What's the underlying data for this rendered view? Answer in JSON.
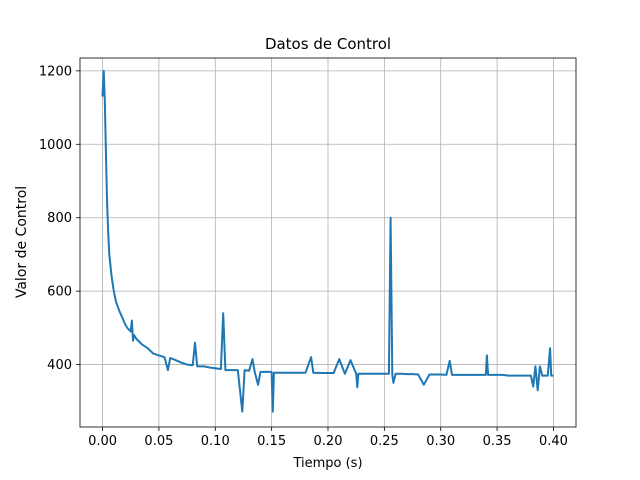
{
  "chart_data": {
    "type": "line",
    "title": "Datos de Control",
    "xlabel": "Tiempo (s)",
    "ylabel": "Valor de Control",
    "xlim": [
      -0.02,
      0.42
    ],
    "ylim": [
      230,
      1235
    ],
    "xticks": [
      0.0,
      0.05,
      0.1,
      0.15,
      0.2,
      0.25,
      0.3,
      0.35,
      0.4
    ],
    "xtick_labels": [
      "0.00",
      "0.05",
      "0.10",
      "0.15",
      "0.20",
      "0.25",
      "0.30",
      "0.35",
      "0.40"
    ],
    "yticks": [
      400,
      600,
      800,
      1000,
      1200
    ],
    "ytick_labels": [
      "400",
      "600",
      "800",
      "1000",
      "1200"
    ],
    "grid": true,
    "color": "#1f77b4",
    "series": [
      {
        "x": [
          0.0,
          0.001,
          0.002,
          0.003,
          0.004,
          0.005,
          0.006,
          0.008,
          0.01,
          0.012,
          0.015,
          0.018,
          0.02,
          0.022,
          0.025,
          0.026,
          0.027,
          0.028,
          0.03,
          0.035,
          0.04,
          0.045,
          0.05,
          0.055,
          0.058,
          0.06,
          0.065,
          0.07,
          0.075,
          0.08,
          0.082,
          0.084,
          0.09,
          0.095,
          0.1,
          0.105,
          0.107,
          0.109,
          0.115,
          0.12,
          0.124,
          0.126,
          0.13,
          0.133,
          0.135,
          0.138,
          0.14,
          0.145,
          0.15,
          0.151,
          0.152,
          0.16,
          0.17,
          0.18,
          0.185,
          0.187,
          0.195,
          0.2,
          0.205,
          0.21,
          0.215,
          0.22,
          0.225,
          0.226,
          0.227,
          0.235,
          0.24,
          0.245,
          0.25,
          0.254,
          0.2555,
          0.257,
          0.258,
          0.26,
          0.265,
          0.27,
          0.275,
          0.28,
          0.285,
          0.29,
          0.3,
          0.305,
          0.308,
          0.31,
          0.315,
          0.32,
          0.33,
          0.34,
          0.341,
          0.342,
          0.345,
          0.35,
          0.355,
          0.36,
          0.365,
          0.37,
          0.375,
          0.38,
          0.382,
          0.384,
          0.386,
          0.388,
          0.39,
          0.392,
          0.395,
          0.397,
          0.398,
          0.4
        ],
        "y": [
          1130,
          1200,
          1120,
          980,
          840,
          760,
          700,
          640,
          600,
          570,
          545,
          525,
          510,
          500,
          490,
          520,
          465,
          480,
          470,
          455,
          445,
          430,
          425,
          420,
          385,
          418,
          412,
          405,
          400,
          398,
          460,
          395,
          395,
          392,
          390,
          388,
          540,
          385,
          385,
          385,
          272,
          385,
          383,
          415,
          380,
          345,
          380,
          380,
          380,
          272,
          378,
          378,
          378,
          378,
          420,
          378,
          377,
          377,
          377,
          415,
          375,
          412,
          375,
          338,
          375,
          375,
          375,
          375,
          375,
          375,
          800,
          372,
          350,
          375,
          375,
          374,
          374,
          373,
          345,
          373,
          373,
          372,
          410,
          372,
          372,
          372,
          372,
          372,
          425,
          372,
          372,
          372,
          372,
          370,
          370,
          370,
          370,
          370,
          340,
          395,
          330,
          395,
          370,
          370,
          370,
          445,
          370,
          370
        ]
      }
    ]
  }
}
